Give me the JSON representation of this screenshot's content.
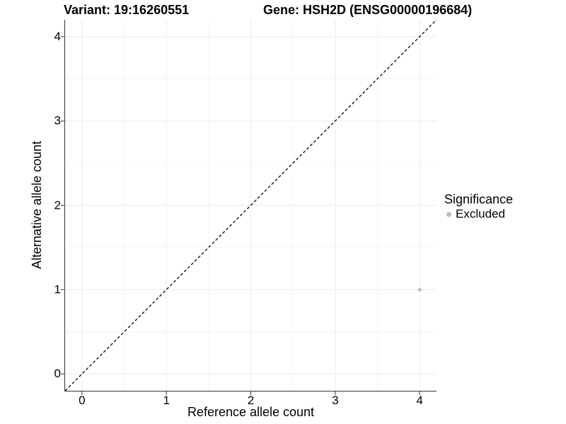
{
  "chart_data": {
    "type": "scatter",
    "titles": {
      "left": "Variant: 19:16260551",
      "right": "Gene: HSH2D (ENSG00000196684)"
    },
    "xlabel": "Reference allele count",
    "ylabel": "Alternative allele count",
    "xlim": [
      -0.2,
      4.2
    ],
    "ylim": [
      -0.2,
      4.2
    ],
    "x_ticks": [
      0,
      1,
      2,
      3,
      4
    ],
    "y_ticks": [
      0,
      1,
      2,
      3,
      4
    ],
    "grid": {
      "major": true,
      "minor": true
    },
    "reference_line": {
      "kind": "identity y=x",
      "style": "dashed",
      "color": "#000000"
    },
    "series": [
      {
        "name": "Excluded",
        "color": "#bebebe",
        "points": [
          {
            "x": 4,
            "y": 1
          }
        ]
      }
    ],
    "legend": {
      "title": "Significance",
      "position": "right",
      "entries": [
        {
          "label": "Excluded",
          "color": "#bebebe",
          "marker": "circle"
        }
      ]
    }
  },
  "colors": {
    "background": "#ffffff",
    "panel_background": "#ffffff",
    "grid_major": "#ebebeb",
    "grid_minor": "#f5f5f5",
    "axis": "#333333",
    "text": "#000000"
  }
}
